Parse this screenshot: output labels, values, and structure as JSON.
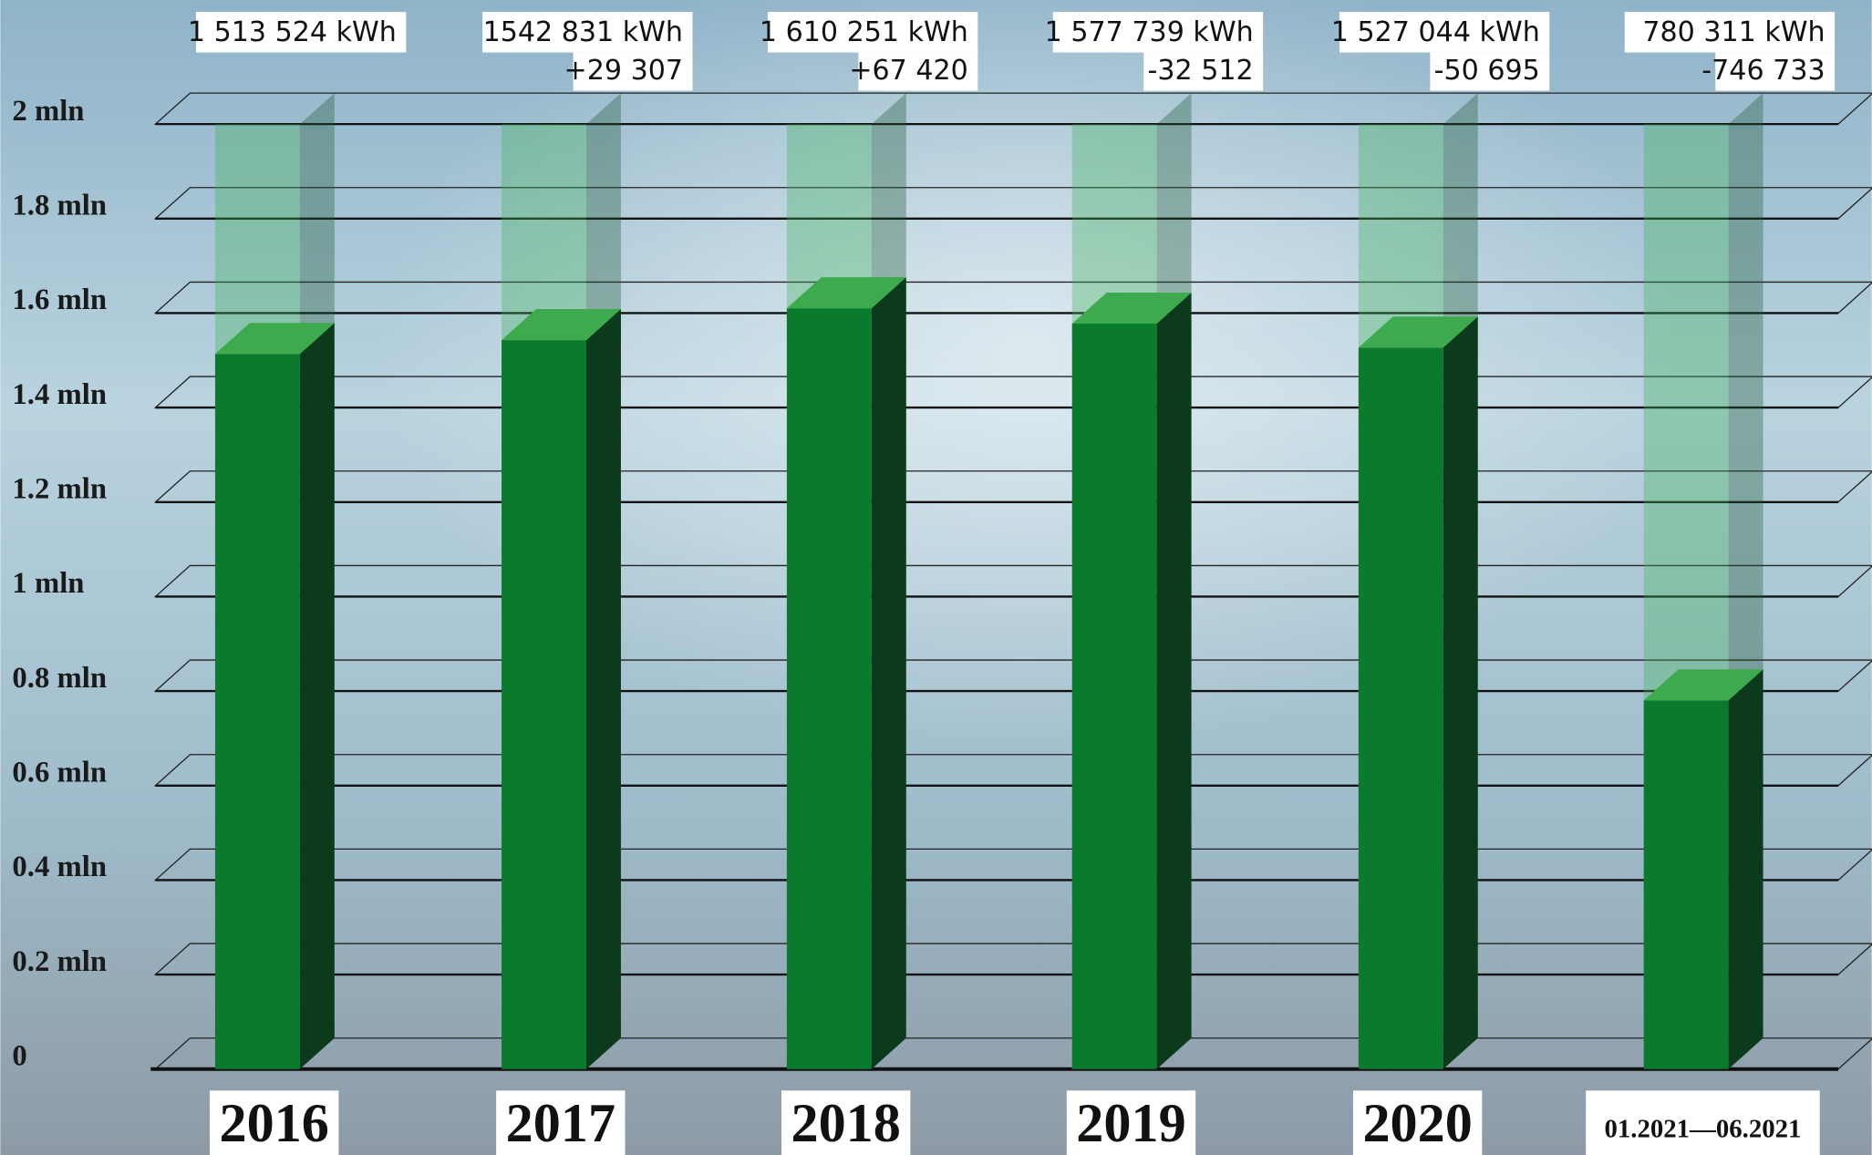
{
  "chart_data": {
    "type": "bar3d",
    "categories": [
      "2016",
      "2017",
      "2018",
      "2019",
      "2020",
      "01.2021—06.2021"
    ],
    "values": [
      1513524,
      1542831,
      1610251,
      1577739,
      1527044,
      780311
    ],
    "value_labels": [
      "1 513 524 kWh",
      "1542 831 kWh",
      "1 610 251 kWh",
      "1 577 739 kWh",
      "1 527 044 kWh",
      "780 311 kWh"
    ],
    "change_labels": [
      null,
      "+29 307",
      "+67 420",
      "-32 512",
      "-50 695",
      "-746 733"
    ],
    "color": "#0a7a2c",
    "ylim": [
      0,
      2000000
    ],
    "yticks": [
      {
        "value": 0,
        "label": "0"
      },
      {
        "value": 200000,
        "label": "0.2 mln"
      },
      {
        "value": 400000,
        "label": "0.4 mln"
      },
      {
        "value": 600000,
        "label": "0.6 mln"
      },
      {
        "value": 800000,
        "label": "0.8 mln"
      },
      {
        "value": 1000000,
        "label": "1 mln"
      },
      {
        "value": 1200000,
        "label": "1.2 mln"
      },
      {
        "value": 1400000,
        "label": "1.4 mln"
      },
      {
        "value": 1600000,
        "label": "1.6 mln"
      },
      {
        "value": 1800000,
        "label": "1.8 mln"
      },
      {
        "value": 2000000,
        "label": "2 mln"
      }
    ],
    "grid": true
  }
}
